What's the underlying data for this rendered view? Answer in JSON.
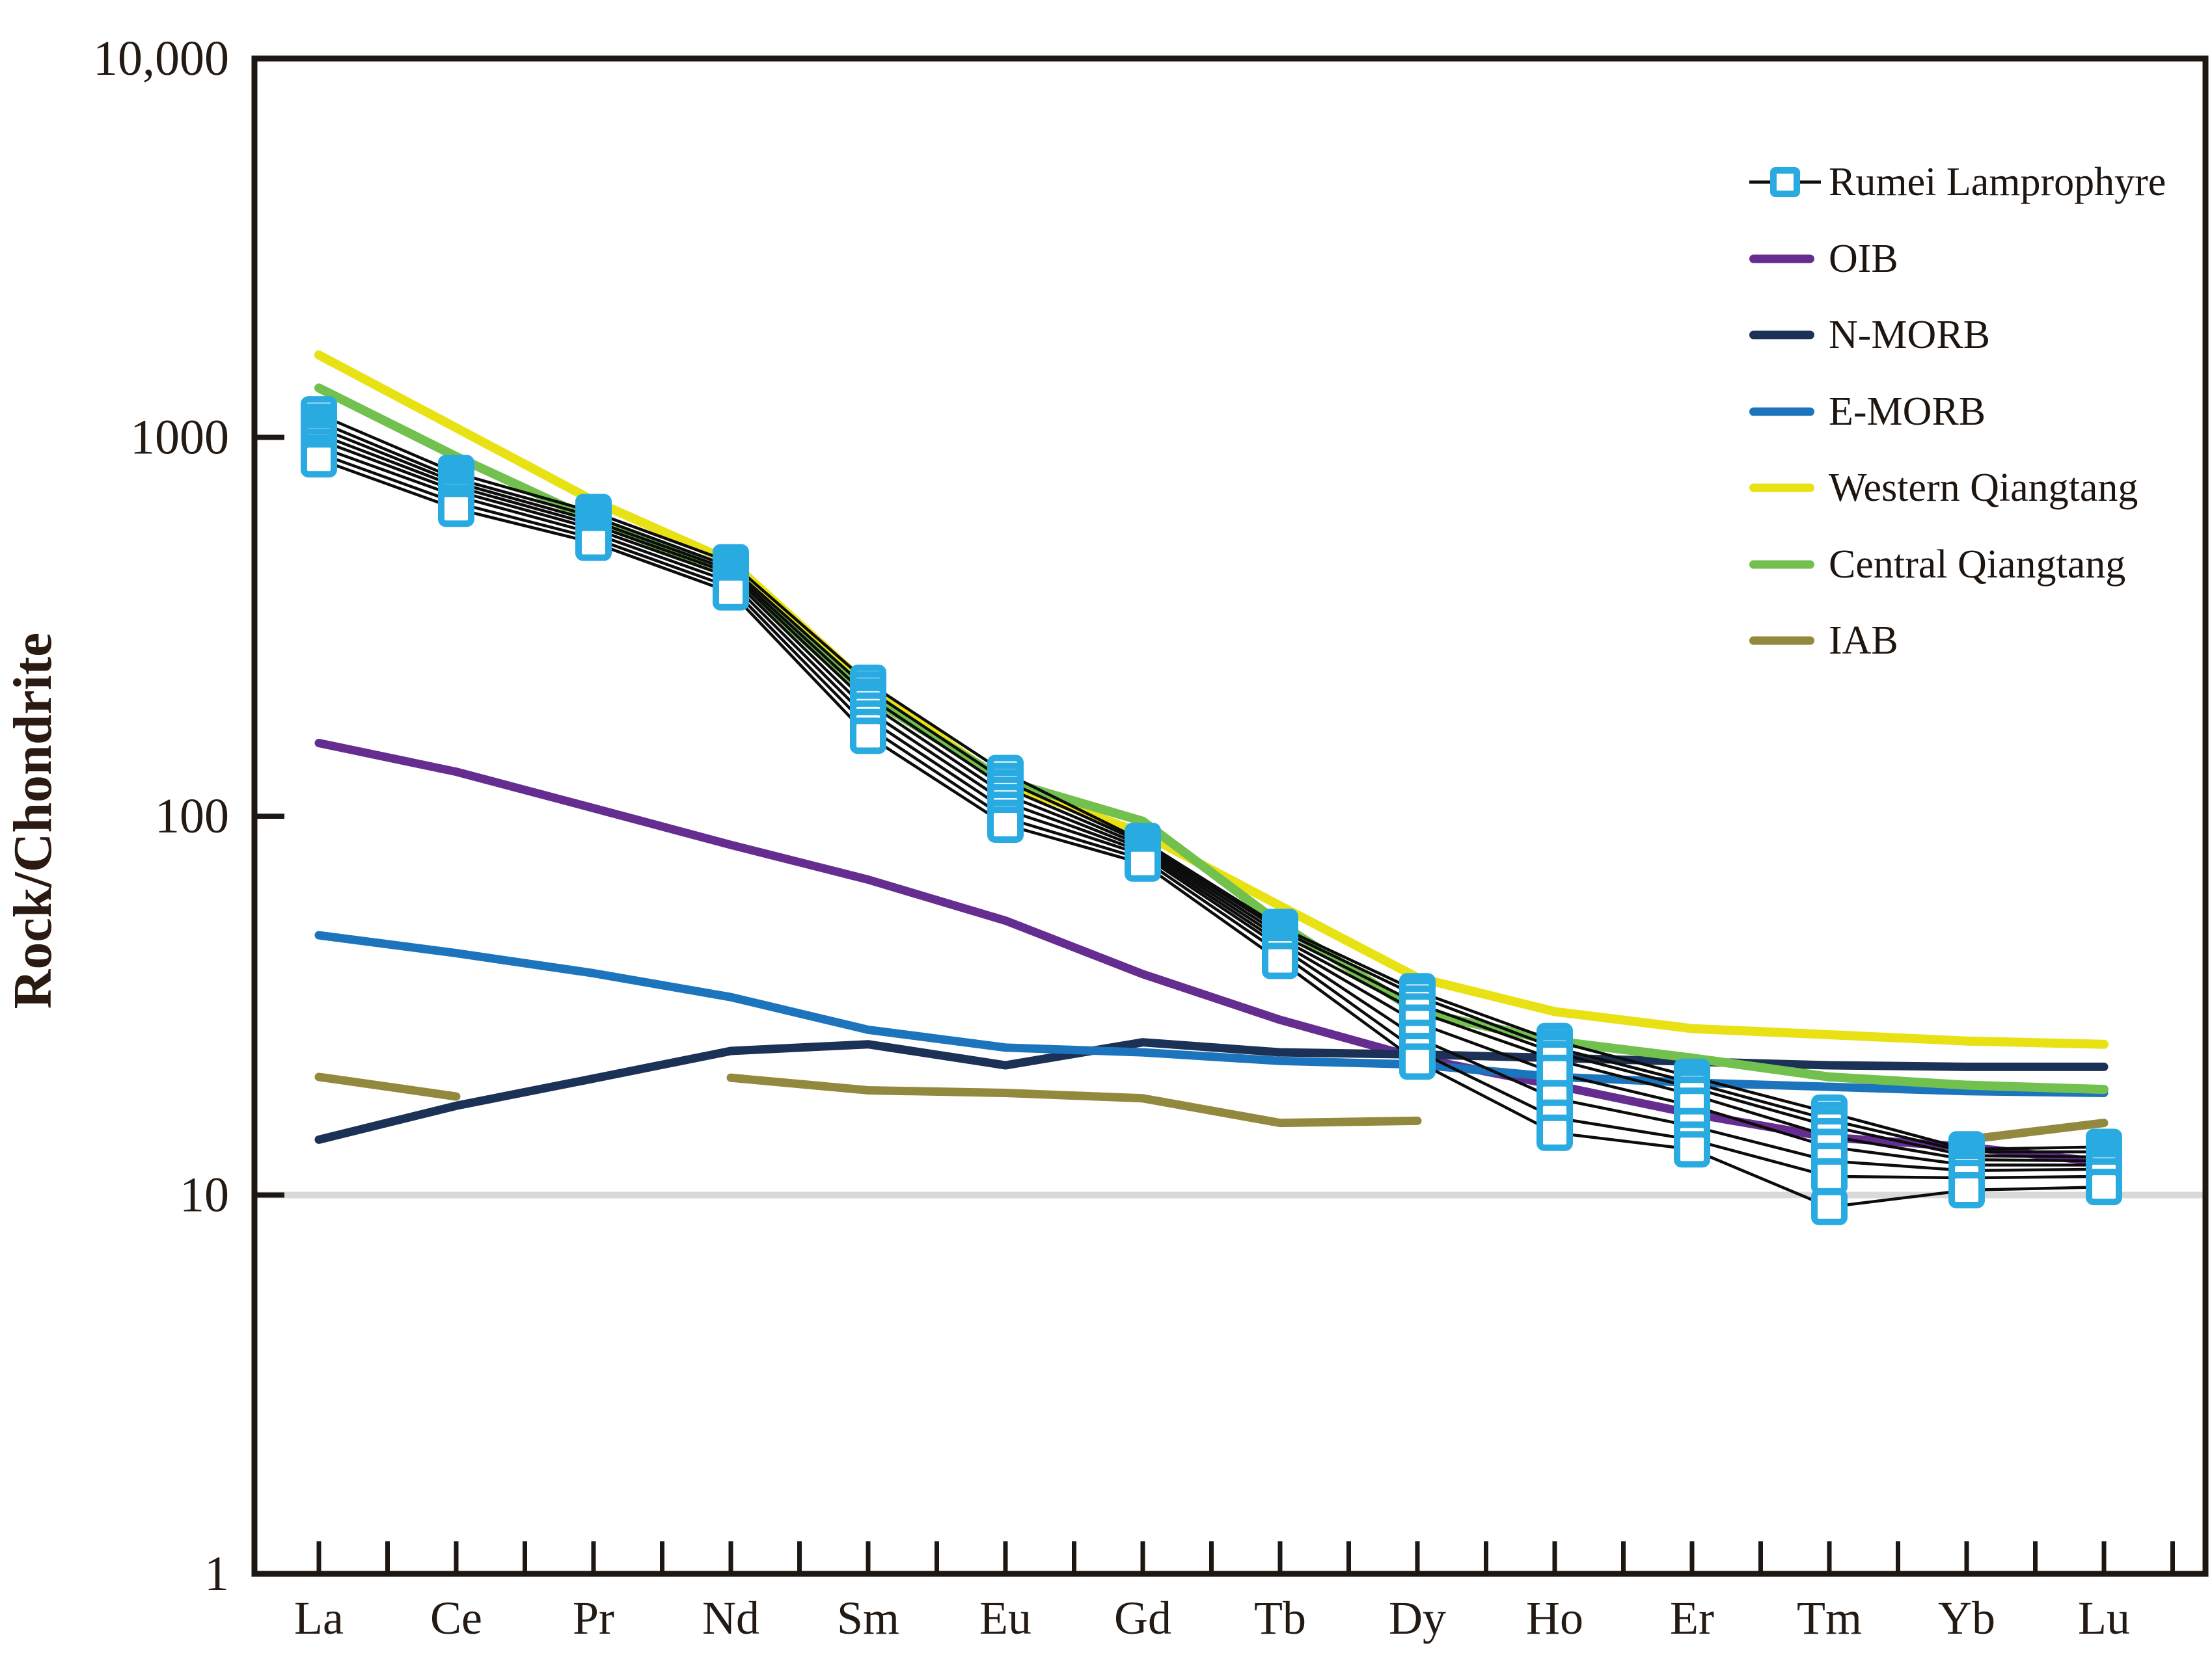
{
  "figure": {
    "ylabel": "Rock/Chondrite"
  },
  "y_axis": {
    "scale": "log",
    "min": 1,
    "max": 10000,
    "tick_values": [
      10000,
      1000,
      100,
      10,
      1
    ],
    "tick_labels": [
      "10,000",
      "1000",
      "100",
      "10",
      "1"
    ],
    "reference_gridline_value": 10,
    "gridline_color": "#d9d9d9"
  },
  "x_axis": {
    "categories": [
      "La",
      "Ce",
      "Pr",
      "Nd",
      "Sm",
      "Eu",
      "Gd",
      "Tb",
      "Dy",
      "Ho",
      "Er",
      "Tm",
      "Yb",
      "Lu"
    ]
  },
  "chart_data": {
    "type": "line",
    "title": "",
    "xlabel": "",
    "ylabel": "Rock/Chondrite",
    "x": [
      "La",
      "Ce",
      "Pr",
      "Nd",
      "Sm",
      "Eu",
      "Gd",
      "Tb",
      "Dy",
      "Ho",
      "Er",
      "Tm",
      "Yb",
      "Lu"
    ],
    "y_scale": "log",
    "ylim": [
      1,
      10000
    ],
    "grid": "single gray line at y=10",
    "legend_position": "upper right inside plot",
    "series": [
      {
        "name": "Rumei Lamprophyre",
        "role": "sample-group",
        "line_color": "#0c0c0c",
        "line_width": 4.5,
        "marker": "square",
        "marker_color": "#29ABE2",
        "marker_fill": "#ffffff",
        "samples": [
          [
            1150,
            805,
            635,
            468,
            225,
            130,
            86.0,
            51.0,
            34.5,
            25.5,
            20.5,
            16.5,
            13.2,
            13.4
          ],
          [
            1100,
            778,
            618,
            455,
            216,
            124,
            85.0,
            50.0,
            33.5,
            24.5,
            19.8,
            15.8,
            13.0,
            13.0
          ],
          [
            1060,
            760,
            602,
            446,
            207,
            119,
            83.5,
            48.8,
            32.0,
            23.8,
            19.2,
            15.2,
            12.7,
            12.6
          ],
          [
            1020,
            742,
            588,
            437,
            199,
            114,
            82.0,
            47.6,
            30.5,
            22.8,
            18.4,
            14.3,
            12.4,
            12.3
          ],
          [
            985,
            722,
            574,
            427,
            190,
            109,
            80.5,
            46.4,
            28.5,
            21.0,
            17.2,
            13.4,
            12.0,
            12.0
          ],
          [
            945,
            700,
            558,
            415,
            181,
            104,
            79.0,
            45.2,
            26.0,
            18.0,
            15.2,
            12.3,
            11.6,
            11.7
          ],
          [
            908,
            672,
            542,
            402,
            172,
            99,
            77.0,
            43.6,
            24.0,
            16.0,
            14.0,
            11.2,
            11.1,
            11.2
          ],
          [
            875,
            648,
            527,
            390,
            163,
            95,
            75.0,
            41.5,
            22.5,
            14.6,
            13.2,
            9.3,
            10.3,
            10.5
          ]
        ]
      },
      {
        "name": "OIB",
        "color": "#662D91",
        "line_width": 13,
        "values": [
          156,
          131,
          105,
          84,
          68,
          53,
          38.3,
          29,
          23,
          19.5,
          16.4,
          14.2,
          13.4,
          12.2
        ]
      },
      {
        "name": "N-MORB",
        "color": "#1B3155",
        "line_width": 13,
        "values": [
          14,
          17.2,
          20.3,
          24,
          25,
          22,
          25.3,
          23.8,
          23.5,
          23,
          22.5,
          22,
          21.8,
          21.8
        ]
      },
      {
        "name": "E-MORB",
        "color": "#1C75BC",
        "line_width": 13,
        "values": [
          48.5,
          43.5,
          38.5,
          33.3,
          27.3,
          24.5,
          23.8,
          22.6,
          22.1,
          20.5,
          19.8,
          19.3,
          18.8,
          18.6
        ]
      },
      {
        "name": "Western Qiangtang",
        "color": "#E8E215",
        "line_width": 14,
        "values": [
          1650,
          1060,
          680,
          470,
          220,
          122,
          90,
          58,
          37.5,
          30.5,
          27.5,
          26.5,
          25.5,
          25
        ]
      },
      {
        "name": "Central Qiangtang",
        "color": "#72C14E",
        "line_width": 14,
        "values": [
          1350,
          890,
          605,
          435,
          207,
          124,
          97,
          52,
          30.5,
          25.5,
          23,
          20.5,
          19.5,
          19
        ]
      },
      {
        "name": "IAB",
        "color": "#93893E",
        "line_width": 13,
        "values": [
          20.5,
          18.2,
          null,
          20.4,
          18.9,
          18.6,
          18.0,
          15.5,
          15.7,
          null,
          null,
          null,
          14,
          15.5
        ]
      }
    ]
  },
  "legend": {
    "items": [
      {
        "label": "Rumei Lamprophyre",
        "color": "#29ABE2",
        "swatch": "square-on-line"
      },
      {
        "label": "OIB",
        "color": "#662D91",
        "swatch": "line"
      },
      {
        "label": "N-MORB",
        "color": "#1B3155",
        "swatch": "line"
      },
      {
        "label": "E-MORB",
        "color": "#1C75BC",
        "swatch": "line"
      },
      {
        "label": "Western Qiangtang",
        "color": "#E8E215",
        "swatch": "line"
      },
      {
        "label": "Central Qiangtang",
        "color": "#72C14E",
        "swatch": "line"
      },
      {
        "label": "IAB",
        "color": "#93893E",
        "swatch": "line"
      }
    ]
  }
}
